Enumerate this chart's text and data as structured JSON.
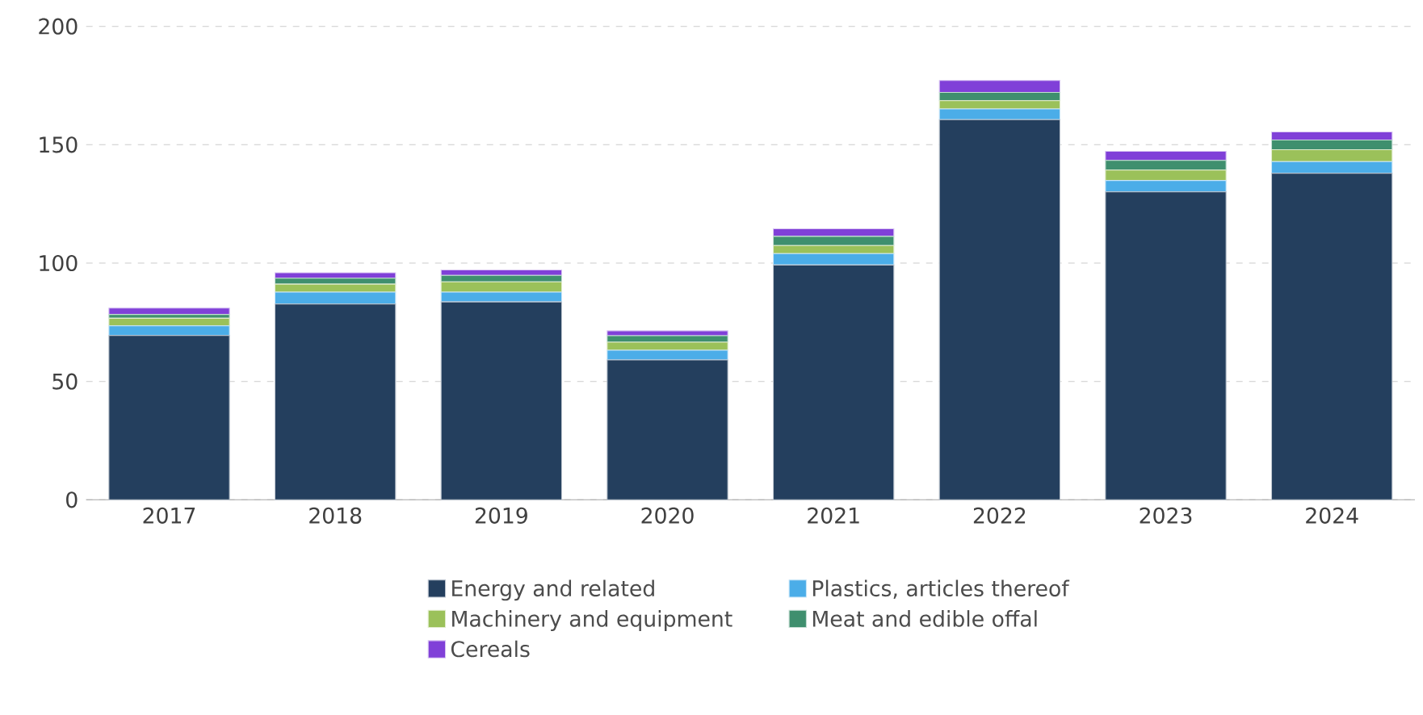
{
  "chart_data": {
    "type": "bar",
    "stacked": true,
    "categories": [
      "2017",
      "2018",
      "2019",
      "2020",
      "2021",
      "2022",
      "2023",
      "2024"
    ],
    "series": [
      {
        "name": "Energy and related",
        "color": "#243f5e",
        "values": [
          69.4,
          82.7,
          83.6,
          59.1,
          99.2,
          160.6,
          130.1,
          137.9
        ]
      },
      {
        "name": "Plastics, articles thereof",
        "color": "#4bade8",
        "values": [
          4.1,
          5.0,
          4.1,
          4.1,
          4.8,
          4.5,
          4.8,
          5.0
        ]
      },
      {
        "name": "Machinery and equipment",
        "color": "#9bc15a",
        "values": [
          3.2,
          3.4,
          4.4,
          3.4,
          3.4,
          3.5,
          4.4,
          5.0
        ]
      },
      {
        "name": "Meat and edible offal",
        "color": "#3f8f6e",
        "values": [
          1.6,
          2.5,
          2.7,
          2.7,
          3.9,
          3.5,
          4.1,
          4.1
        ]
      },
      {
        "name": "Cereals",
        "color": "#8040d8",
        "values": [
          2.7,
          2.3,
          2.3,
          2.1,
          3.2,
          5.0,
          3.8,
          3.4
        ]
      }
    ],
    "ylim": [
      0,
      200
    ],
    "yticks": [
      0,
      50,
      100,
      150,
      200
    ],
    "grid": "y",
    "legend": "bottom"
  }
}
